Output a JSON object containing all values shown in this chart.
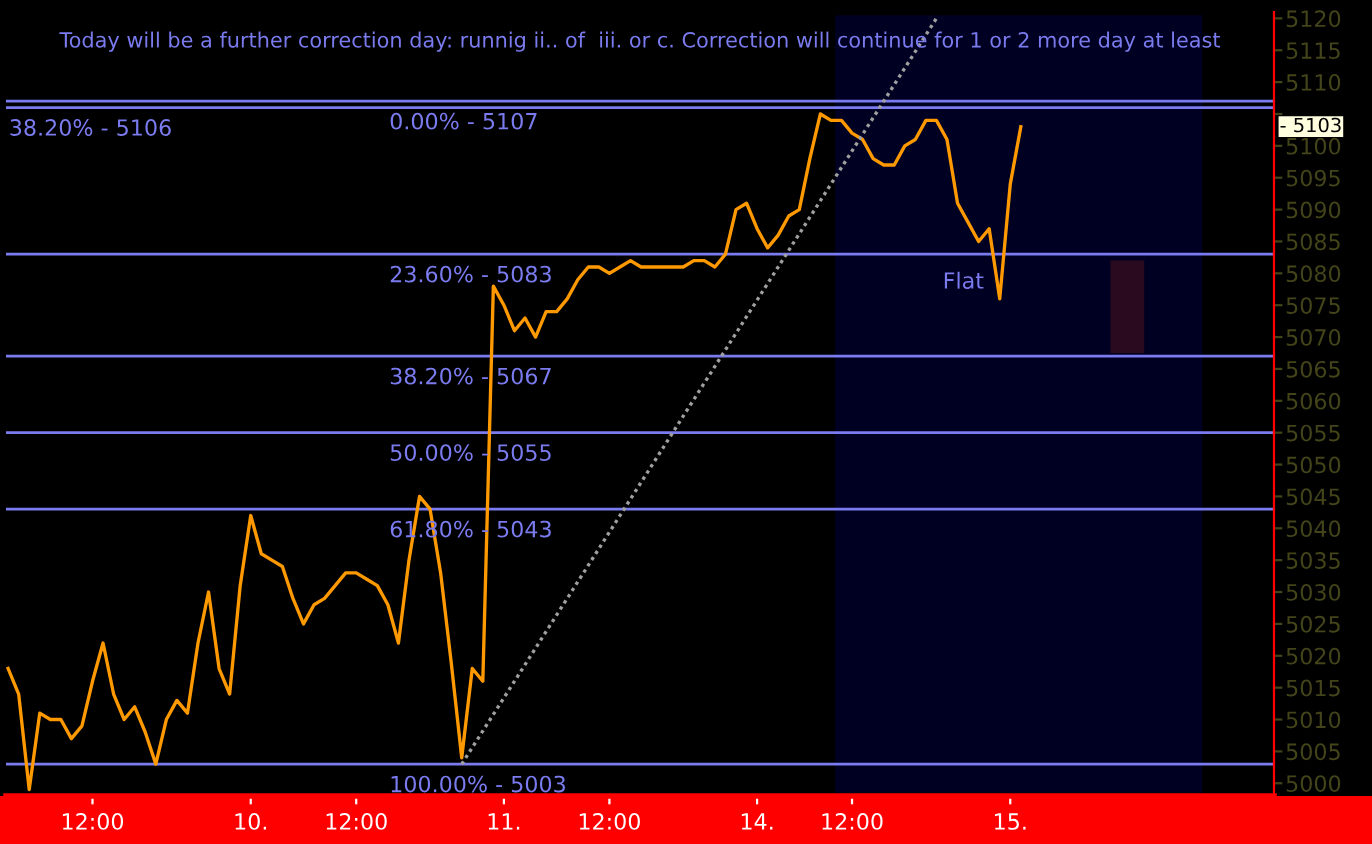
{
  "chart_data": {
    "type": "line",
    "title": "Today will be a further correction day: runnig ii.. of  iii. or c. Correction will continue for 1 or 2 more day at least",
    "ylim": [
      4998,
      5121
    ],
    "categories": [
      null,
      null,
      null,
      null,
      null,
      null,
      null,
      null,
      "12:00",
      null,
      null,
      null,
      null,
      null,
      null,
      null,
      null,
      null,
      null,
      null,
      null,
      null,
      null,
      "10.",
      null,
      null,
      null,
      null,
      null,
      null,
      null,
      null,
      null,
      "12:00",
      null,
      null,
      null,
      null,
      null,
      null,
      null,
      null,
      null,
      null,
      null,
      null,
      null,
      "11.",
      null,
      null,
      null,
      null,
      null,
      null,
      null,
      null,
      null,
      "12:00",
      null,
      null,
      null,
      null,
      null,
      null,
      null,
      null,
      null,
      null,
      null,
      null,
      null,
      "14.",
      null,
      null,
      null,
      null,
      null,
      null,
      null,
      null,
      "12:00",
      null,
      null,
      null,
      null,
      null,
      null,
      null,
      null,
      null,
      null,
      null,
      null,
      null,
      null,
      "15.",
      null,
      null,
      null,
      null,
      null,
      null,
      null,
      null,
      null,
      null,
      null,
      null,
      null,
      null,
      null,
      null,
      null,
      null,
      null,
      null,
      null,
      null,
      null,
      null,
      null
    ],
    "yticks": [
      5000,
      5005,
      5010,
      5015,
      5020,
      5025,
      5030,
      5035,
      5040,
      5045,
      5050,
      5055,
      5060,
      5065,
      5070,
      5075,
      5080,
      5085,
      5090,
      5095,
      5100,
      {
        "value": 5105,
        "label": null
      },
      5110,
      5115,
      5120
    ],
    "grid": false,
    "series": [
      {
        "color": "#ff9900",
        "values": [
          5018,
          5014,
          4999,
          5011,
          5010,
          5010,
          5007,
          5009,
          5016,
          5022,
          5014,
          5010,
          5012,
          5008,
          5003,
          5010,
          5013,
          5011,
          5022,
          5030,
          5018,
          5014,
          5031,
          5042,
          5036,
          5035,
          5034,
          5029,
          5025,
          5028,
          5029,
          5031,
          5033,
          5033,
          5032,
          5031,
          5028,
          5022,
          5035,
          5045,
          5043,
          5033,
          5019,
          5004,
          5018,
          5016,
          5078,
          5075,
          5071,
          5073,
          5070,
          5074,
          5074,
          5076,
          5079,
          5081,
          5081,
          5080,
          5081,
          5082,
          5081,
          5081,
          5081,
          5081,
          5081,
          5082,
          5082,
          5081,
          5083,
          5090,
          5091,
          5087,
          5084,
          5086,
          5089,
          5090,
          5098,
          5105,
          5104,
          5104,
          5102,
          5101,
          5098,
          5097,
          5097,
          5100,
          5101,
          5104,
          5104,
          5101,
          5091,
          5088,
          5085,
          5087,
          5076,
          5094,
          5103,
          null,
          null,
          null,
          null,
          null,
          null,
          null,
          null,
          null,
          null,
          null,
          null,
          null,
          null,
          null,
          null,
          null,
          null,
          null,
          null,
          null,
          null,
          null,
          null
        ]
      },
      {
        "color": "#a0a0a0",
        "line_style": "dotted",
        "values": [
          null,
          null,
          null,
          null,
          null,
          null,
          null,
          null,
          null,
          null,
          null,
          null,
          null,
          null,
          null,
          null,
          null,
          null,
          null,
          null,
          null,
          null,
          null,
          null,
          null,
          null,
          null,
          null,
          null,
          null,
          null,
          null,
          null,
          null,
          null,
          null,
          null,
          null,
          null,
          null,
          null,
          null,
          null,
          5003,
          null,
          null,
          null,
          null,
          null,
          null,
          null,
          null,
          null,
          null,
          null,
          null,
          null,
          null,
          null,
          null,
          null,
          null,
          null,
          null,
          null,
          null,
          null,
          null,
          null,
          null,
          null,
          null,
          null,
          null,
          null,
          null,
          null,
          null,
          null,
          null,
          null,
          null,
          null,
          null,
          null,
          null,
          null,
          null,
          5120,
          null,
          null,
          null,
          null,
          null,
          null,
          null,
          null,
          null,
          null,
          null,
          null,
          null,
          null,
          null,
          null,
          null,
          null,
          null,
          null,
          null,
          null,
          null,
          null,
          null,
          null,
          null,
          null,
          null,
          null,
          null,
          null
        ]
      }
    ],
    "ref_lines": [
      {
        "axis": "y",
        "value": 5106,
        "color": "#7b7bf0"
      },
      {
        "axis": "y",
        "value": 5107,
        "color": "#7b7bf0"
      },
      {
        "axis": "y",
        "value": 5083,
        "color": "#7b7bf0"
      },
      {
        "axis": "y",
        "value": 5067,
        "color": "#7b7bf0"
      },
      {
        "axis": "y",
        "value": 5055,
        "color": "#7b7bf0"
      },
      {
        "axis": "y",
        "value": 5043,
        "color": "#7b7bf0"
      },
      {
        "axis": "y",
        "value": 5003,
        "color": "#7b7bf0"
      }
    ],
    "annotations": [
      {
        "text": "38.20% - 5106",
        "y": 5106
      },
      {
        "text": "0.00% - 5107",
        "y": 5107
      },
      {
        "text": "23.60% - 5083",
        "y": 5083
      },
      {
        "text": "38.20% - 5067",
        "y": 5067
      },
      {
        "text": "50.00% - 5055",
        "y": 5055
      },
      {
        "text": "61.80% - 5043",
        "y": 5043
      },
      {
        "text": "100.00% - 5003",
        "y": 5003
      },
      "Flat",
      {
        "text": "- 5103",
        "y": 5103
      }
    ]
  }
}
